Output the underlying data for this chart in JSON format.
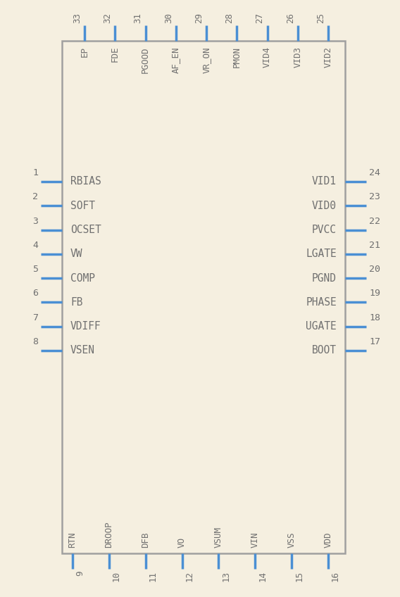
{
  "bg_color": "#f5efe0",
  "box_color": "#a0a0a0",
  "pin_color": "#4a8fd4",
  "text_color": "#707070",
  "fig_w": 5.68,
  "fig_h": 8.48,
  "left_pins": [
    {
      "num": 1,
      "name": "RBIAS"
    },
    {
      "num": 2,
      "name": "SOFT"
    },
    {
      "num": 3,
      "name": "OCSET"
    },
    {
      "num": 4,
      "name": "VW"
    },
    {
      "num": 5,
      "name": "COMP"
    },
    {
      "num": 6,
      "name": "FB"
    },
    {
      "num": 7,
      "name": "VDIFF"
    },
    {
      "num": 8,
      "name": "VSEN"
    }
  ],
  "right_pins": [
    {
      "num": 24,
      "name": "VID1"
    },
    {
      "num": 23,
      "name": "VID0"
    },
    {
      "num": 22,
      "name": "PVCC"
    },
    {
      "num": 21,
      "name": "LGATE"
    },
    {
      "num": 20,
      "name": "PGND"
    },
    {
      "num": 19,
      "name": "PHASE"
    },
    {
      "num": 18,
      "name": "UGATE"
    },
    {
      "num": 17,
      "name": "BOOT"
    }
  ],
  "top_pins": [
    {
      "num": 33,
      "name": "EP"
    },
    {
      "num": 32,
      "name": "FDE"
    },
    {
      "num": 31,
      "name": "PGOOD"
    },
    {
      "num": 30,
      "name": "AF_EN"
    },
    {
      "num": 29,
      "name": "VR_ON"
    },
    {
      "num": 28,
      "name": "PMON"
    },
    {
      "num": 27,
      "name": "VID4"
    },
    {
      "num": 26,
      "name": "VID3"
    },
    {
      "num": 25,
      "name": "VID2"
    }
  ],
  "bottom_pins": [
    {
      "num": 9,
      "name": "RTN"
    },
    {
      "num": 10,
      "name": "DROOP"
    },
    {
      "num": 11,
      "name": "DFB"
    },
    {
      "num": 12,
      "name": "VO"
    },
    {
      "num": 13,
      "name": "VSUM"
    },
    {
      "num": 14,
      "name": "VIN"
    },
    {
      "num": 15,
      "name": "VSS"
    },
    {
      "num": 16,
      "name": "VDD"
    }
  ]
}
